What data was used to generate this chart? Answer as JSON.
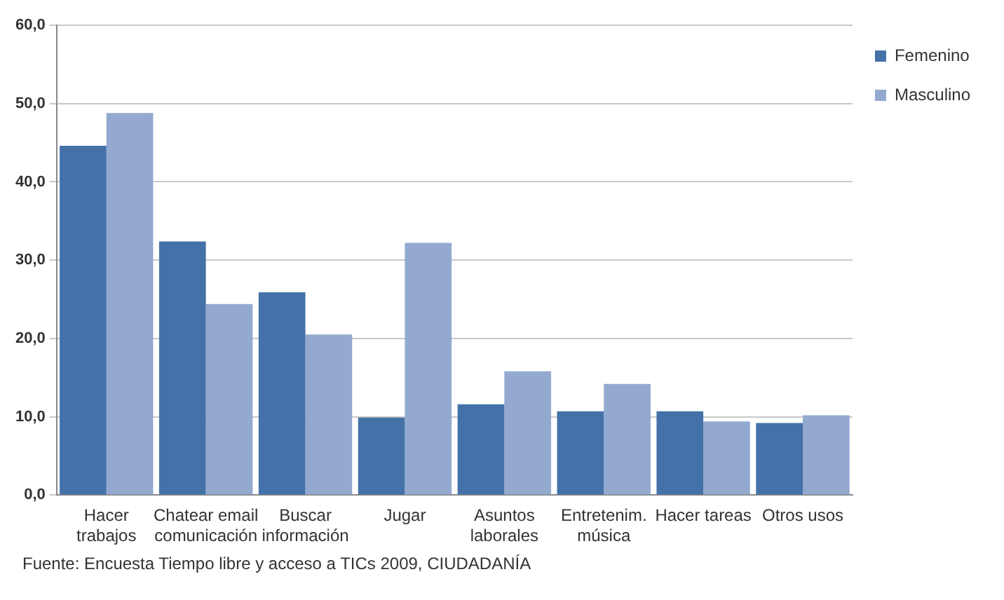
{
  "chart_data": {
    "type": "bar",
    "categories": [
      "Hacer\ntrabajos",
      "Chatear email\ncomunicación",
      "Buscar\ninformación",
      "Jugar",
      "Asuntos\nlaborales",
      "Entretenim.\nmúsica",
      "Hacer tareas",
      "Otros usos"
    ],
    "series": [
      {
        "name": "Femenino",
        "color": "#4472a8",
        "values": [
          44.6,
          32.4,
          25.9,
          9.9,
          11.6,
          10.7,
          10.7,
          9.2
        ]
      },
      {
        "name": "Masculino",
        "color": "#93a9d0",
        "values": [
          48.8,
          24.4,
          20.5,
          32.2,
          15.8,
          14.2,
          9.4,
          10.2
        ]
      }
    ],
    "ylim": [
      0,
      60
    ],
    "yticks": [
      {
        "value": 0,
        "label": "0,0"
      },
      {
        "value": 10,
        "label": "10,0"
      },
      {
        "value": 20,
        "label": "20,0"
      },
      {
        "value": 30,
        "label": "30,0"
      },
      {
        "value": 40,
        "label": "40,0"
      },
      {
        "value": 50,
        "label": "50,0"
      },
      {
        "value": 60,
        "label": "60,0"
      }
    ],
    "grid": "y",
    "legend": "right",
    "annotations": [
      "Fuente: Encuesta Tiempo libre y acceso a TICs 2009, CIUDADANÍA"
    ]
  }
}
